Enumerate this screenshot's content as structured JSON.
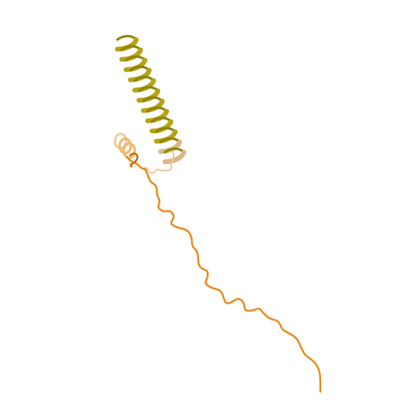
{
  "scene": {
    "subject": "protein-ribbon-structure",
    "colors": {
      "background": "#ffffff",
      "helix_main": "#b5a514",
      "helix_shade": "#8f8208",
      "helix_tail": "#d8b884",
      "coil": "#e88a1a",
      "coil_shade": "#c8700e",
      "loop_light": "#f0c89a",
      "small_helix": "#f2b66a"
    },
    "icons": [
      "ribbon-helix",
      "coil-strand"
    ]
  }
}
